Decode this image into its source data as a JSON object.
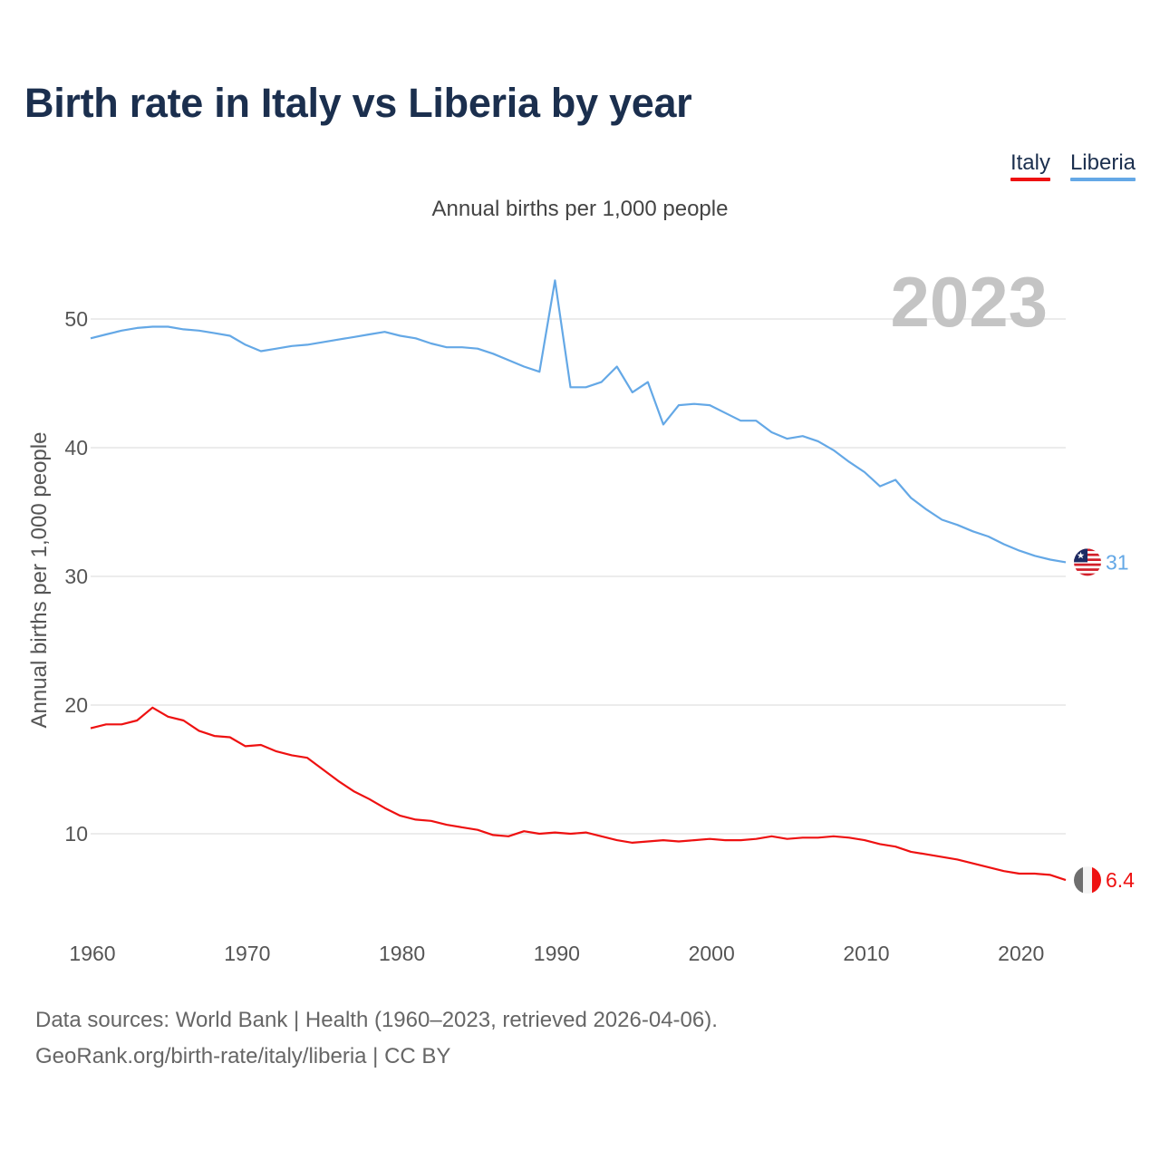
{
  "title": "Birth rate in Italy vs Liberia by year",
  "subtitle": "Annual births per 1,000 people",
  "legend": [
    {
      "label": "Italy",
      "color": "#ee1111"
    },
    {
      "label": "Liberia",
      "color": "#64a8e6"
    }
  ],
  "source": {
    "line1": "Data sources: World Bank | Health (1960–2023, retrieved 2026-04-06).",
    "line2": "GeoRank.org/birth-rate/italy/liberia | CC BY"
  },
  "chart_data": {
    "type": "line",
    "title": "Birth rate in Italy vs Liberia by year",
    "ylabel": "Annual births per 1,000 people",
    "xlabel": "",
    "year_label": "2023",
    "xlim": [
      1960,
      2023
    ],
    "ylim": [
      3,
      55
    ],
    "x_ticks": [
      1960,
      1970,
      1980,
      1990,
      2000,
      2010,
      2020
    ],
    "y_ticks": [
      10,
      20,
      30,
      40,
      50
    ],
    "grid": true,
    "x": [
      1960,
      1961,
      1962,
      1963,
      1964,
      1965,
      1966,
      1967,
      1968,
      1969,
      1970,
      1971,
      1972,
      1973,
      1974,
      1975,
      1976,
      1977,
      1978,
      1979,
      1980,
      1981,
      1982,
      1983,
      1984,
      1985,
      1986,
      1987,
      1988,
      1989,
      1990,
      1991,
      1992,
      1993,
      1994,
      1995,
      1996,
      1997,
      1998,
      1999,
      2000,
      2001,
      2002,
      2003,
      2004,
      2005,
      2006,
      2007,
      2008,
      2009,
      2010,
      2011,
      2012,
      2013,
      2014,
      2015,
      2016,
      2017,
      2018,
      2019,
      2020,
      2021,
      2022,
      2023
    ],
    "series": [
      {
        "name": "Liberia",
        "color": "#64a8e6",
        "end_label": "31",
        "flag": "liberia-flag-icon",
        "values": [
          48.5,
          48.8,
          49.1,
          49.3,
          49.4,
          49.4,
          49.2,
          49.1,
          48.9,
          48.7,
          48.0,
          47.5,
          47.7,
          47.9,
          48.0,
          48.2,
          48.4,
          48.6,
          48.8,
          49.0,
          48.7,
          48.5,
          48.1,
          47.8,
          47.8,
          47.7,
          47.3,
          46.8,
          46.3,
          45.9,
          53.0,
          44.7,
          44.7,
          45.1,
          46.3,
          44.3,
          45.1,
          41.8,
          43.3,
          43.4,
          43.3,
          42.7,
          42.1,
          42.1,
          41.2,
          40.7,
          40.9,
          40.5,
          39.8,
          38.9,
          38.1,
          37.0,
          37.5,
          36.1,
          35.2,
          34.4,
          34.0,
          33.5,
          33.1,
          32.5,
          32.0,
          31.6,
          31.3,
          31.1
        ]
      },
      {
        "name": "Italy",
        "color": "#ee1111",
        "end_label": "6.4",
        "flag": "italy-flag-icon",
        "values": [
          18.2,
          18.5,
          18.5,
          18.8,
          19.8,
          19.1,
          18.8,
          18.0,
          17.6,
          17.5,
          16.8,
          16.9,
          16.4,
          16.1,
          15.9,
          15.0,
          14.1,
          13.3,
          12.7,
          12.0,
          11.4,
          11.1,
          11.0,
          10.7,
          10.5,
          10.3,
          9.9,
          9.8,
          10.2,
          10.0,
          10.1,
          10.0,
          10.1,
          9.8,
          9.5,
          9.3,
          9.4,
          9.5,
          9.4,
          9.5,
          9.6,
          9.5,
          9.5,
          9.6,
          9.8,
          9.6,
          9.7,
          9.7,
          9.8,
          9.7,
          9.5,
          9.2,
          9.0,
          8.6,
          8.4,
          8.2,
          8.0,
          7.7,
          7.4,
          7.1,
          6.9,
          6.9,
          6.8,
          6.4
        ]
      }
    ]
  }
}
